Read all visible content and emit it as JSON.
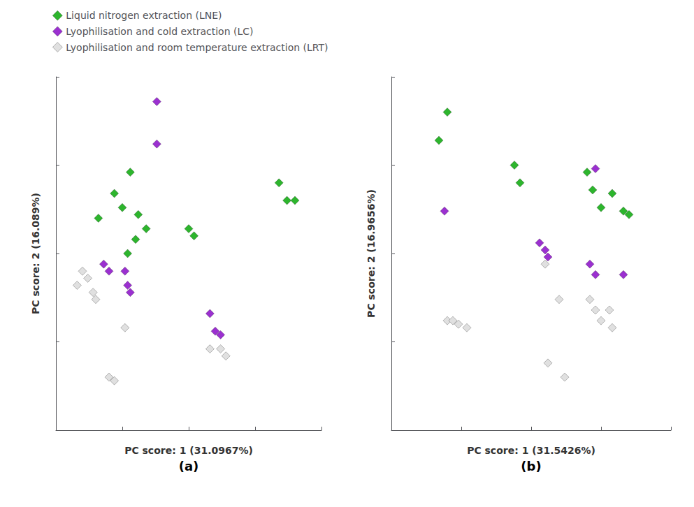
{
  "chart_data": [
    {
      "type": "scatter",
      "xlabel": "PC score: 1 (31.0967%)",
      "ylabel": "PC score: 2 (16.089%)",
      "annotation": "(a)",
      "xlim": [
        0,
        1
      ],
      "ylim": [
        0,
        1
      ],
      "xticks": [
        0,
        0.25,
        0.5,
        0.75,
        1
      ],
      "yticks": [
        0,
        0.25,
        0.5,
        0.75,
        1
      ],
      "tick_labels": false,
      "grid": false,
      "legend": "upper left",
      "marker": "diamond",
      "series": [
        {
          "name": "Liquid nitrogen extraction (LNE)",
          "color": "#2db52d",
          "x": [
            0.28,
            0.22,
            0.25,
            0.31,
            0.16,
            0.34,
            0.3,
            0.27,
            0.5,
            0.52,
            0.84,
            0.87,
            0.9
          ],
          "values": [
            0.73,
            0.67,
            0.63,
            0.61,
            0.6,
            0.57,
            0.54,
            0.5,
            0.57,
            0.55,
            0.7,
            0.65,
            0.65
          ]
        },
        {
          "name": "Lyophilisation and cold extraction (LC)",
          "color": "#9b30d0",
          "x": [
            0.38,
            0.38,
            0.18,
            0.2,
            0.26,
            0.27,
            0.28,
            0.58,
            0.6,
            0.62
          ],
          "values": [
            0.93,
            0.81,
            0.47,
            0.45,
            0.45,
            0.41,
            0.39,
            0.33,
            0.28,
            0.27
          ]
        },
        {
          "name": "Lyophilisation and room temperature extraction (LRT)",
          "color": "#e0e0e0",
          "x": [
            0.1,
            0.12,
            0.08,
            0.14,
            0.15,
            0.26,
            0.58,
            0.62,
            0.64,
            0.2,
            0.22
          ],
          "values": [
            0.45,
            0.43,
            0.41,
            0.39,
            0.37,
            0.29,
            0.23,
            0.23,
            0.21,
            0.15,
            0.14
          ]
        }
      ]
    },
    {
      "type": "scatter",
      "xlabel": "PC score: 1 (31.5426%)",
      "ylabel": "PC score: 2 (16.9656%)",
      "annotation": "(b)",
      "xlim": [
        0,
        1
      ],
      "ylim": [
        0,
        1
      ],
      "xticks": [
        0,
        0.25,
        0.5,
        0.75,
        1
      ],
      "yticks": [
        0,
        0.25,
        0.5,
        0.75,
        1
      ],
      "tick_labels": false,
      "grid": false,
      "legend": "upper left",
      "marker": "diamond",
      "series": [
        {
          "name": "Liquid nitrogen extraction (LNE)",
          "color": "#2db52d",
          "x": [
            0.2,
            0.17,
            0.44,
            0.46,
            0.7,
            0.72,
            0.79,
            0.75,
            0.83,
            0.85
          ],
          "values": [
            0.9,
            0.82,
            0.75,
            0.7,
            0.73,
            0.68,
            0.67,
            0.63,
            0.62,
            0.61
          ]
        },
        {
          "name": "Lyophilisation and cold extraction (LC)",
          "color": "#9b30d0",
          "x": [
            0.19,
            0.53,
            0.55,
            0.56,
            0.73,
            0.71,
            0.73,
            0.83
          ],
          "values": [
            0.62,
            0.53,
            0.51,
            0.49,
            0.74,
            0.47,
            0.44,
            0.44
          ]
        },
        {
          "name": "Lyophilisation and room temperature extraction (LRT)",
          "color": "#e0e0e0",
          "x": [
            0.2,
            0.22,
            0.24,
            0.27,
            0.55,
            0.6,
            0.71,
            0.73,
            0.78,
            0.75,
            0.79,
            0.56,
            0.62
          ],
          "values": [
            0.31,
            0.31,
            0.3,
            0.29,
            0.47,
            0.37,
            0.37,
            0.34,
            0.34,
            0.31,
            0.29,
            0.19,
            0.15
          ]
        }
      ]
    }
  ]
}
